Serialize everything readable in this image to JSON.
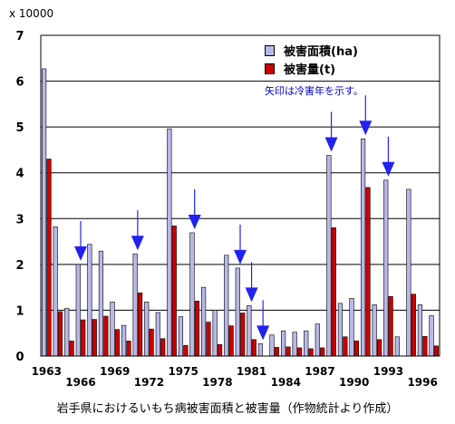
{
  "chart_data": {
    "type": "bar",
    "unit_label": "x 10000",
    "caption": "岩手県におけるいもち病被害面積と被害量（作物統計より作成）",
    "note": "矢印は冷害年を示す。",
    "ylim": [
      0,
      7
    ],
    "yticks": [
      "0",
      "1",
      "2",
      "3",
      "4",
      "5",
      "6",
      "7"
    ],
    "categories": [
      "1963",
      "1964",
      "1965",
      "1966",
      "1967",
      "1968",
      "1969",
      "1970",
      "1971",
      "1972",
      "1973",
      "1974",
      "1975",
      "1976",
      "1977",
      "1978",
      "1979",
      "1980",
      "1981",
      "1982",
      "1983",
      "1984",
      "1985",
      "1986",
      "1987",
      "1988",
      "1989",
      "1990",
      "1991",
      "1992",
      "1993",
      "1994",
      "1995",
      "1996",
      "1997"
    ],
    "xtick_labels_row1": [
      "1963",
      "1969",
      "1975",
      "1981",
      "1987",
      "1993"
    ],
    "xtick_labels_row2": [
      "1966",
      "1972",
      "1978",
      "1984",
      "1990",
      "1996"
    ],
    "series": [
      {
        "name": "被害面積(ha)",
        "color": "#b8b8e8",
        "values": [
          6.27,
          2.82,
          1.04,
          2.0,
          2.44,
          2.29,
          1.18,
          0.67,
          2.23,
          1.18,
          0.95,
          4.96,
          0.86,
          2.69,
          1.5,
          1.0,
          2.2,
          1.92,
          1.1,
          0.27,
          0.46,
          0.55,
          0.52,
          0.55,
          0.7,
          4.38,
          1.15,
          1.26,
          4.74,
          1.12,
          3.84,
          0.42,
          3.64,
          1.12,
          0.88
        ]
      },
      {
        "name": "被害量(t)",
        "color": "#cc0000",
        "values": [
          4.3,
          0.97,
          0.33,
          0.79,
          0.8,
          0.87,
          0.58,
          0.33,
          1.38,
          0.59,
          0.38,
          2.84,
          0.23,
          1.2,
          0.74,
          0.25,
          0.66,
          0.94,
          0.36,
          0.0,
          0.19,
          0.2,
          0.18,
          0.16,
          0.18,
          2.8,
          0.42,
          0.33,
          3.68,
          0.36,
          1.3,
          0.0,
          1.35,
          0.43,
          0.22
        ]
      }
    ],
    "cold_years": [
      "1966",
      "1971",
      "1976",
      "1980",
      "1981",
      "1982",
      "1988",
      "1991",
      "1993"
    ]
  }
}
